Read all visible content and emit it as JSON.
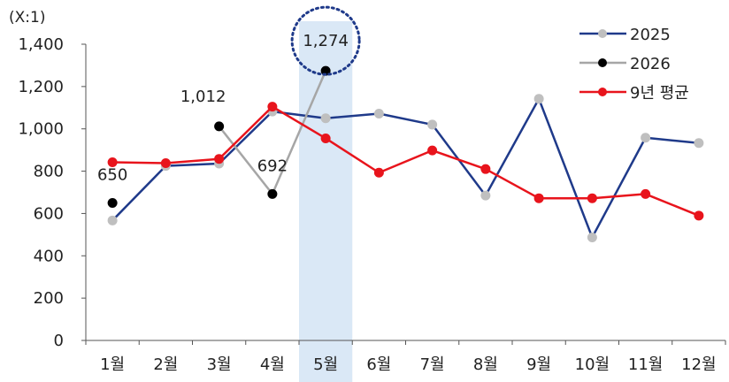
{
  "chart_data": {
    "type": "line",
    "unit_label": "(X:1)",
    "categories": [
      "1월",
      "2월",
      "3월",
      "4월",
      "5월",
      "6월",
      "7월",
      "8월",
      "9월",
      "10월",
      "11월",
      "12월"
    ],
    "y_ticks": [
      "0",
      "200",
      "400",
      "600",
      "800",
      "1,000",
      "1,200",
      "1,400"
    ],
    "ylim": [
      0,
      1400
    ],
    "grid": false,
    "legend_position": "top-right",
    "highlight": {
      "category": "5월",
      "color": "#dae8f6"
    },
    "series": [
      {
        "name": "2025",
        "color": "#1f3a8a",
        "marker_color": "#bfbfbf",
        "values": [
          567,
          825,
          836,
          1082,
          1050,
          1072,
          1020,
          685,
          1142,
          487,
          958,
          933
        ]
      },
      {
        "name": "2026",
        "color": "#a6a6a6",
        "marker_color": "#000000",
        "values": [
          650,
          null,
          1012,
          692,
          1274,
          null,
          null,
          null,
          null,
          null,
          null,
          null
        ]
      },
      {
        "name": "9년 평균",
        "color": "#e8141c",
        "marker_color": "#e8141c",
        "values": [
          842,
          838,
          858,
          1105,
          955,
          793,
          898,
          810,
          672,
          672,
          692,
          590
        ]
      }
    ],
    "annotations": [
      {
        "category": "1월",
        "text": "650"
      },
      {
        "category": "3월",
        "text": "1,012"
      },
      {
        "category": "4월",
        "text": "692"
      },
      {
        "category": "5월",
        "text": "1,274",
        "circled": true,
        "circle_color": "#1f3a8a"
      }
    ]
  }
}
